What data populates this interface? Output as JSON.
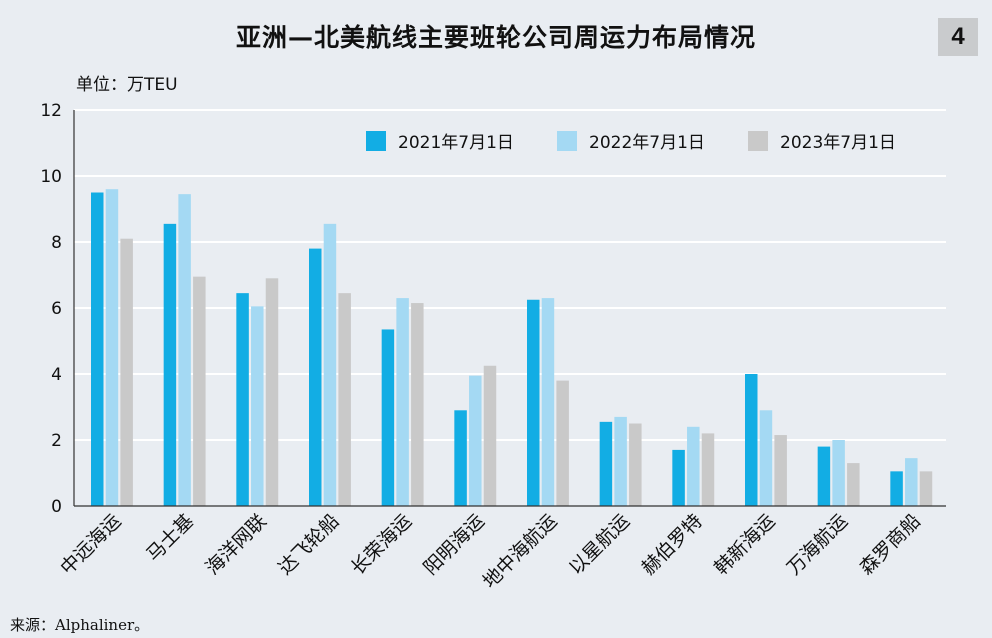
{
  "header": {
    "title": "亚洲—北美航线主要班轮公司周运力布局情况",
    "badge": "4",
    "unit": "单位：万TEU"
  },
  "footer": {
    "source": "来源：Alphaliner。"
  },
  "colors": {
    "s2021": "#12ade4",
    "s2022": "#a4d9f3",
    "s2023": "#c9c9c9",
    "grid": "#ffffff",
    "axis": "#333333"
  },
  "chart_data": {
    "type": "bar",
    "title": "亚洲—北美航线主要班轮公司周运力布局情况",
    "ylabel": "单位：万TEU",
    "xlabel": "",
    "ylim": [
      0,
      12
    ],
    "yticks": [
      0,
      2,
      4,
      6,
      8,
      10,
      12
    ],
    "grid": true,
    "legend_position": "top-right",
    "categories": [
      "中远海运",
      "马士基",
      "海洋网联",
      "达飞轮船",
      "长荣海运",
      "阳明海运",
      "地中海航运",
      "以星航运",
      "赫伯罗特",
      "韩新海运",
      "万海航运",
      "森罗商船"
    ],
    "series": [
      {
        "name": "2021年7月1日",
        "values": [
          9.5,
          8.55,
          6.45,
          7.8,
          5.35,
          2.9,
          6.25,
          2.55,
          1.7,
          4.0,
          1.8,
          1.05
        ]
      },
      {
        "name": "2022年7月1日",
        "values": [
          9.6,
          9.45,
          6.05,
          8.55,
          6.3,
          3.95,
          6.3,
          2.7,
          2.4,
          2.9,
          2.0,
          1.45
        ]
      },
      {
        "name": "2023年7月1日",
        "values": [
          8.1,
          6.95,
          6.9,
          6.45,
          6.15,
          4.25,
          3.8,
          2.5,
          2.2,
          2.15,
          1.3,
          1.05
        ]
      }
    ]
  }
}
